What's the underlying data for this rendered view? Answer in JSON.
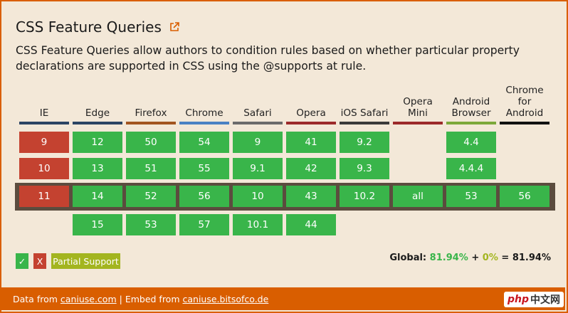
{
  "title": "CSS Feature Queries",
  "title_icon": "external-link-icon",
  "description": "CSS Feature Queries allow authors to condition rules based on whether particular property declarations are supported in CSS using the @supports at rule.",
  "colors": {
    "frame": "#d95e00",
    "background": "#f3e8d8",
    "supported": "#39b54a",
    "unsupported": "#c44230",
    "partial": "#a3b51f",
    "current_row": "#5b4c3e"
  },
  "browsers": [
    {
      "name": "IE",
      "color": "#2c4564",
      "versions": [
        {
          "row": 0,
          "label": "9",
          "status": "no"
        },
        {
          "row": 1,
          "label": "10",
          "status": "no"
        },
        {
          "row": 2,
          "label": "11",
          "status": "no"
        }
      ]
    },
    {
      "name": "Edge",
      "color": "#2c4564",
      "versions": [
        {
          "row": 0,
          "label": "12",
          "status": "yes"
        },
        {
          "row": 1,
          "label": "13",
          "status": "yes"
        },
        {
          "row": 2,
          "label": "14",
          "status": "yes"
        },
        {
          "row": 3,
          "label": "15",
          "status": "yes"
        }
      ]
    },
    {
      "name": "Firefox",
      "color": "#a25520",
      "versions": [
        {
          "row": 0,
          "label": "50",
          "status": "yes"
        },
        {
          "row": 1,
          "label": "51",
          "status": "yes"
        },
        {
          "row": 2,
          "label": "52",
          "status": "yes"
        },
        {
          "row": 3,
          "label": "53",
          "status": "yes"
        }
      ]
    },
    {
      "name": "Chrome",
      "color": "#4a81c3",
      "versions": [
        {
          "row": 0,
          "label": "54",
          "status": "yes"
        },
        {
          "row": 1,
          "label": "55",
          "status": "yes"
        },
        {
          "row": 2,
          "label": "56",
          "status": "yes"
        },
        {
          "row": 3,
          "label": "57",
          "status": "yes"
        }
      ]
    },
    {
      "name": "Safari",
      "color": "#6b6b6b",
      "versions": [
        {
          "row": 0,
          "label": "9",
          "status": "yes"
        },
        {
          "row": 1,
          "label": "9.1",
          "status": "yes"
        },
        {
          "row": 2,
          "label": "10",
          "status": "yes"
        },
        {
          "row": 3,
          "label": "10.1",
          "status": "yes"
        }
      ]
    },
    {
      "name": "Opera",
      "color": "#9c2a2a",
      "versions": [
        {
          "row": 0,
          "label": "41",
          "status": "yes"
        },
        {
          "row": 1,
          "label": "42",
          "status": "yes"
        },
        {
          "row": 2,
          "label": "43",
          "status": "yes"
        },
        {
          "row": 3,
          "label": "44",
          "status": "yes"
        }
      ]
    },
    {
      "name": "iOS Safari",
      "color": "#3a3a3a",
      "versions": [
        {
          "row": 0,
          "label": "9.2",
          "status": "yes"
        },
        {
          "row": 1,
          "label": "9.3",
          "status": "yes"
        },
        {
          "row": 2,
          "label": "10.2",
          "status": "yes"
        }
      ]
    },
    {
      "name": "Opera\nMini",
      "color": "#9c2a2a",
      "versions": [
        {
          "row": 2,
          "label": "all",
          "status": "yes"
        }
      ]
    },
    {
      "name": "Android\nBrowser",
      "color": "#7ca83a",
      "versions": [
        {
          "row": 0,
          "label": "4.4",
          "status": "yes"
        },
        {
          "row": 1,
          "label": "4.4.4",
          "status": "yes"
        },
        {
          "row": 2,
          "label": "53",
          "status": "yes"
        }
      ]
    },
    {
      "name": "Chrome\nfor\nAndroid",
      "color": "#111111",
      "versions": [
        {
          "row": 2,
          "label": "56",
          "status": "yes"
        }
      ]
    }
  ],
  "legend": {
    "supported": "✓",
    "unsupported": "X",
    "partial": "Partial Support"
  },
  "global": {
    "label": "Global:",
    "supported": "81.94%",
    "plus": "+",
    "partial": "0%",
    "equals": "=",
    "total": "81.94%"
  },
  "footer": {
    "data_from": "Data from",
    "data_link": "caniuse.com",
    "separator": " | ",
    "embed_from": "Embed from",
    "embed_link": "caniuse.bitsofco.de"
  },
  "watermark": {
    "php": "php",
    "cn": "中文网"
  }
}
